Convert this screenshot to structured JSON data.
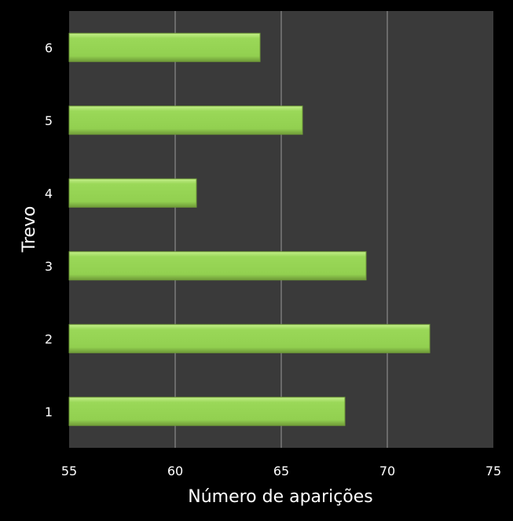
{
  "chart_data": {
    "type": "bar",
    "orientation": "horizontal",
    "categories": [
      "1",
      "2",
      "3",
      "4",
      "5",
      "6"
    ],
    "values": [
      68,
      72,
      69,
      61,
      66,
      64
    ],
    "xlabel": "Número de aparições",
    "ylabel": "Trevo",
    "xlim": [
      55,
      75
    ],
    "xticks": [
      "55",
      "60",
      "65",
      "70",
      "75"
    ],
    "grid": "vertical",
    "legend": "none",
    "colors": {
      "background": "#000000",
      "plot_area": "#3a3a3a",
      "bar_fill": "#92d050",
      "bar_highlight": "#c4ef8a",
      "bar_edge": "#6f9a38",
      "gridline": "#9a9a9a",
      "text": "#ffffff"
    }
  }
}
